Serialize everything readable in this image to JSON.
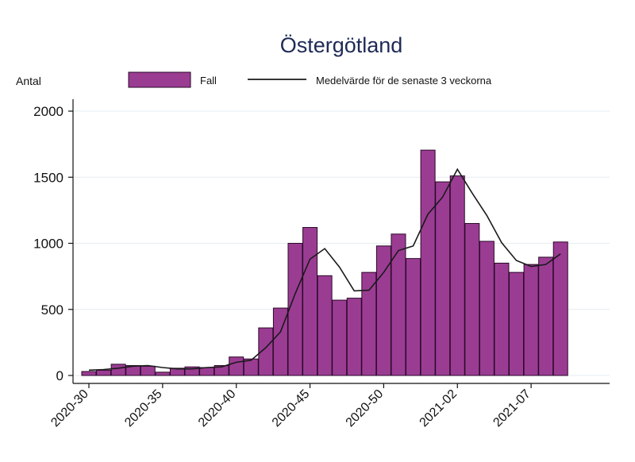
{
  "chart_data": {
    "type": "bar",
    "title": "Östergötland",
    "ylabel": "Antal",
    "xlabel": "",
    "ylim": [
      0,
      2000
    ],
    "yticks": [
      0,
      500,
      1000,
      1500,
      2000
    ],
    "grid": true,
    "legend_position": "top",
    "xtick_labels": [
      "2020-30",
      "2020-35",
      "2020-40",
      "2020-45",
      "2020-50",
      "2021-02",
      "2021-07"
    ],
    "categories": [
      "2020-30",
      "2020-31",
      "2020-32",
      "2020-33",
      "2020-34",
      "2020-35",
      "2020-36",
      "2020-37",
      "2020-38",
      "2020-39",
      "2020-40",
      "2020-41",
      "2020-42",
      "2020-43",
      "2020-44",
      "2020-45",
      "2020-46",
      "2020-47",
      "2020-48",
      "2020-49",
      "2020-50",
      "2020-51",
      "2020-52",
      "2020-53",
      "2021-01",
      "2021-02",
      "2021-03",
      "2021-04",
      "2021-05",
      "2021-06",
      "2021-07",
      "2021-08",
      "2021-09"
    ],
    "series": [
      {
        "name": "Fall",
        "kind": "bar",
        "color": "#9b3c93",
        "values": [
          30,
          40,
          85,
          75,
          70,
          25,
          55,
          65,
          60,
          75,
          140,
          125,
          360,
          510,
          1000,
          1120,
          755,
          570,
          585,
          780,
          980,
          1070,
          885,
          1705,
          1465,
          1510,
          1150,
          1015,
          850,
          780,
          840,
          895,
          1010
        ]
      },
      {
        "name": "Medelvärde för de senaste 3 veckorna",
        "kind": "line",
        "color": "#1a1a1a",
        "values": [
          40,
          45,
          55,
          70,
          75,
          60,
          50,
          50,
          60,
          65,
          100,
          115,
          210,
          330,
          620,
          880,
          960,
          820,
          640,
          645,
          780,
          945,
          980,
          1220,
          1350,
          1560,
          1380,
          1210,
          1005,
          870,
          825,
          840,
          920
        ]
      }
    ]
  }
}
